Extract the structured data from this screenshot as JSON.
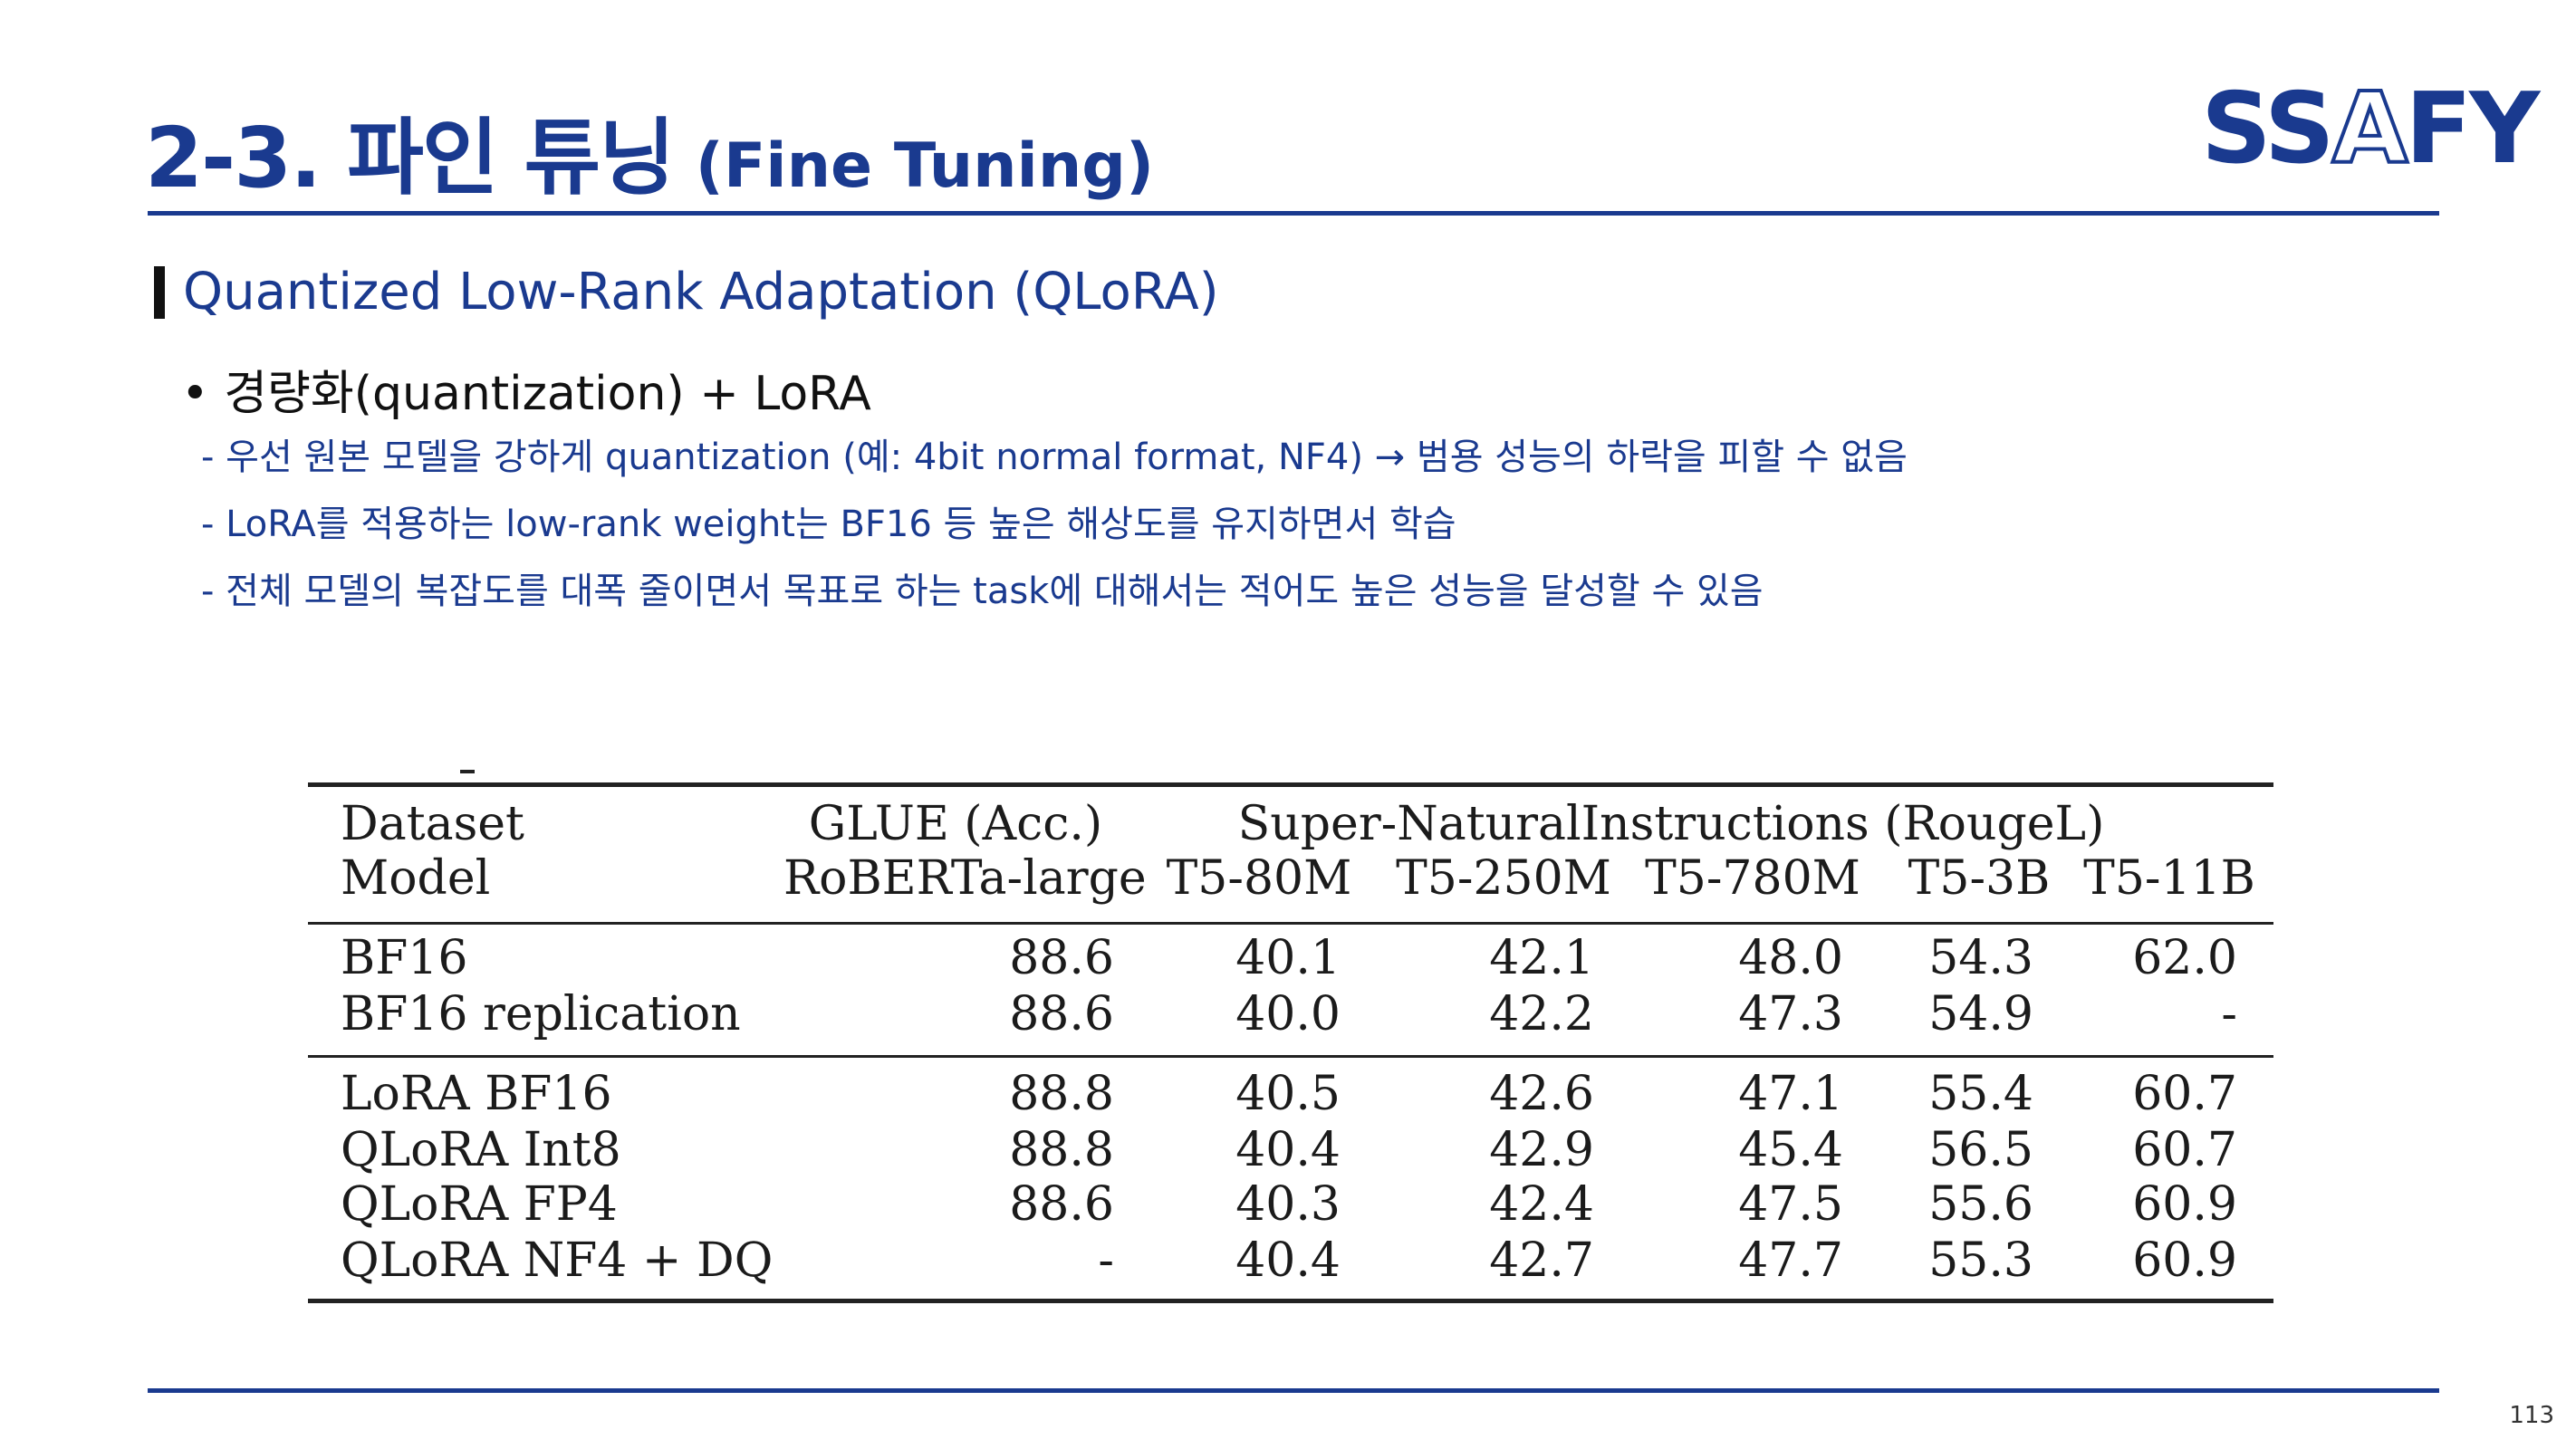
{
  "header": {
    "title_main": "2-3. 파인 튜닝",
    "title_sub": "(Fine Tuning)",
    "logo": {
      "part1": "SS",
      "part2": "A",
      "part3": "FY"
    }
  },
  "section": {
    "title": "Quantized Low-Rank Adaptation (QLoRA)"
  },
  "bullet": "• 경량화(quantization) + LoRA",
  "sub_items": [
    "- 우선 원본 모델을 강하게 quantization (예: 4bit normal format, NF4) → 범용 성능의 하락을 피할 수 없음",
    "- LoRA를 적용하는 low-rank weight는 BF16 등 높은 해상도를 유지하면서 학습",
    "- 전체 모델의 복잡도를 대폭 줄이면서 목표로 하는 task에 대해서는 적어도 높은 성능을 달성할 수 있음"
  ],
  "table": {
    "row_header_1": "Dataset",
    "row_header_2": "Model",
    "glue_header": "GLUE (Acc.)",
    "sni_header": "Super-NaturalInstructions (RougeL)",
    "columns": [
      "RoBERTa-large",
      "T5-80M",
      "T5-250M",
      "T5-780M",
      "T5-3B",
      "T5-11B"
    ],
    "rows": [
      {
        "name": "BF16",
        "values": [
          "88.6",
          "40.1",
          "42.1",
          "48.0",
          "54.3",
          "62.0"
        ]
      },
      {
        "name": "BF16 replication",
        "values": [
          "88.6",
          "40.0",
          "42.2",
          "47.3",
          "54.9",
          "-"
        ]
      },
      {
        "name": "LoRA BF16",
        "values": [
          "88.8",
          "40.5",
          "42.6",
          "47.1",
          "55.4",
          "60.7"
        ]
      },
      {
        "name": "QLoRA Int8",
        "values": [
          "88.8",
          "40.4",
          "42.9",
          "45.4",
          "56.5",
          "60.7"
        ]
      },
      {
        "name": "QLoRA FP4",
        "values": [
          "88.6",
          "40.3",
          "42.4",
          "47.5",
          "55.6",
          "60.9"
        ]
      },
      {
        "name": "QLoRA NF4 + DQ",
        "values": [
          "-",
          "40.4",
          "42.7",
          "47.7",
          "55.3",
          "60.9"
        ]
      }
    ]
  },
  "page_number": "113"
}
